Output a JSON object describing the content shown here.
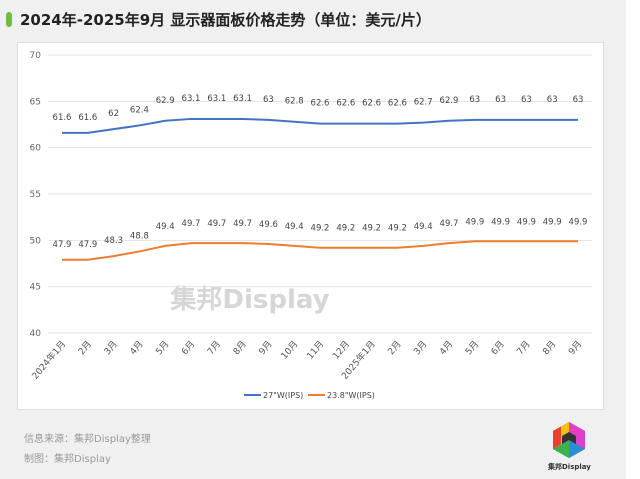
{
  "title": "2024年-2025年9月 显示器面板价格走势（单位：美元/片）",
  "source": "信息来源：集邦Display整理",
  "made_by": "制图：集邦Display",
  "watermark": "集邦Display",
  "logo_text": "集邦Display",
  "chart_data": {
    "type": "line",
    "title": "",
    "categories": [
      "2024年1月",
      "2月",
      "3月",
      "4月",
      "5月",
      "6月",
      "7月",
      "8月",
      "9月",
      "10月",
      "11月",
      "12月",
      "2025年1月",
      "2月",
      "3月",
      "4月",
      "5月",
      "6月",
      "7月",
      "8月",
      "9月"
    ],
    "ylim": [
      40,
      70
    ],
    "yticks": [
      40,
      45,
      50,
      55,
      60,
      65,
      70
    ],
    "grid": true,
    "legend": "bottom",
    "series": [
      {
        "name": "27\"W(IPS)",
        "color": "#4472c4",
        "values": [
          61.6,
          61.6,
          62,
          62.4,
          62.9,
          63.1,
          63.1,
          63.1,
          63,
          62.8,
          62.6,
          62.6,
          62.6,
          62.6,
          62.7,
          62.9,
          63,
          63,
          63,
          63,
          63
        ]
      },
      {
        "name": "23.8\"W(IPS)",
        "color": "#ed7d31",
        "values": [
          47.9,
          47.9,
          48.3,
          48.8,
          49.4,
          49.7,
          49.7,
          49.7,
          49.6,
          49.4,
          49.2,
          49.2,
          49.2,
          49.2,
          49.4,
          49.7,
          49.9,
          49.9,
          49.9,
          49.9,
          49.9
        ]
      }
    ]
  }
}
